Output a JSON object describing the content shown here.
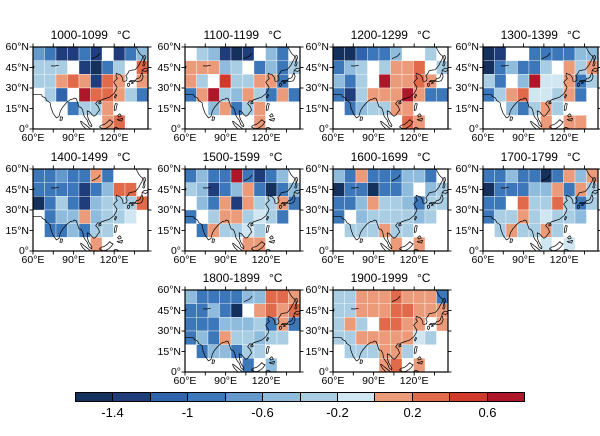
{
  "figure": {
    "background": "#ffffff",
    "unit_label": "°C"
  },
  "axes": {
    "x_tick_labels": [
      "60°E",
      "90°E",
      "120°E"
    ],
    "y_tick_labels": [
      "60°N",
      "45°N",
      "30°N",
      "15°N",
      "0°"
    ],
    "lon_range": [
      60,
      145
    ],
    "lat_range": [
      0,
      60
    ]
  },
  "colorbar": {
    "tick_labels": [
      "-1.4",
      "-1",
      "-0.6",
      "-0.2",
      "0.2",
      "0.6"
    ],
    "tick_values": [
      -1.4,
      -1.0,
      -0.6,
      -0.2,
      0.2,
      0.6
    ],
    "segment_colors": [
      "#14305d",
      "#1e3d7a",
      "#2f63ab",
      "#3c77b9",
      "#6699cb",
      "#8fbcdc",
      "#a9cee4",
      "#d0e6f1",
      "#ec9b7a",
      "#e06a4a",
      "#d03a2b",
      "#ae172a"
    ],
    "bin_edges": [
      -1.6,
      -1.4,
      -1.2,
      -1.0,
      -0.8,
      -0.6,
      -0.4,
      -0.2,
      0.0,
      0.2,
      0.4,
      0.6,
      0.8
    ]
  },
  "chart_data": {
    "type": "heatmap",
    "title": "",
    "unit": "°C",
    "description": "Ten century-mean gridded temperature anomaly maps over Asia (60-145E, 0-60N), 10x6 cells per panel, shared discrete blue-red colorbar (-1.6 to 0.8 C in 0.2 C bins).",
    "grid": {
      "cols": 10,
      "rows": 6,
      "lon_start": 60,
      "lon_step": 8.5,
      "lat_start": 60,
      "lat_step": -10
    },
    "value_encoding": {
      "chars": "0123456789ab",
      "bin_centers": [
        -1.5,
        -1.3,
        -1.1,
        -0.9,
        -0.7,
        -0.5,
        -0.3,
        -0.1,
        0.1,
        0.3,
        0.5,
        0.7
      ],
      "no_data_char": "."
    },
    "panels": [
      {
        "label": "1000-1099",
        "cells": [
          "431131.135",
          "666.1036.9",
          "66898198.8",
          ".62.b99863",
          "...3668...",
          "......89.."
        ]
      },
      {
        "label": "1100-1199",
        "cells": [
          ".65101.53.",
          "88856.3536",
          "86.a66883.",
          "38b6586383",
          "..58368...",
          "......8..."
        ]
      },
      {
        "label": "1200-1299",
        "cells": [
          "002335..6.",
          "356.6889.6",
          "536.b8898.",
          "316888b833",
          ".356688...",
          "......98.."
        ]
      },
      {
        "label": "1300-1399",
        "cells": [
          "01..333355",
          "035336.868",
          "63.5b77836",
          "368977683.",
          "..53686...",
          ".....8.88."
        ]
      },
      {
        "label": "1400-1499",
        "cells": [
          "3343383...",
          "333313599.",
          "0363156669",
          ".35585667.",
          ".335366...",
          ".....8...."
        ]
      },
      {
        "label": "1500-1599",
        "cells": [
          "3533b3135.",
          "6513583035",
          ".538186683",
          "3.6886763.",
          ".386676...",
          ".....88..."
        ]
      },
      {
        "label": "1600-1699",
        "cells": [
          "538333553.",
          "0330335.56",
          "3358665366",
          "3.5666656.",
          ".666866...",
          ".....8.8.."
        ]
      },
      {
        "label": "1700-1799",
        "cells": [
          "3353303858",
          "0333558386",
          "33.9669636",
          "366867665.",
          ".686686...",
          ".....7.7.."
        ]
      },
      {
        "label": "1800-1899",
        "cells": [
          "5333355998",
          "33530.8989",
          "3335556383",
          "353866566.",
          ".355366...",
          ".....3.5.."
        ]
      },
      {
        "label": "1900-1999",
        "cells": [
          "6688898883",
          "6688899888",
          "686.9988.8",
          "668888876.",
          ".666886...",
          "....89.8.."
        ]
      }
    ]
  }
}
